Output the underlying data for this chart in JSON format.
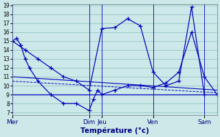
{
  "background_color": "#cce8e8",
  "grid_color": "#88bbbb",
  "line_color": "#0000bb",
  "xlabel": "Température (°c)",
  "ylim": [
    7,
    19
  ],
  "yticks": [
    7,
    8,
    9,
    10,
    11,
    12,
    13,
    14,
    15,
    16,
    17,
    18,
    19
  ],
  "xlim": [
    0,
    48
  ],
  "day_labels": [
    "Mer",
    "Dim",
    "Jeu",
    "Ven",
    "Sam"
  ],
  "day_x": [
    0,
    18,
    21,
    33,
    45
  ],
  "vlines": [
    0,
    18,
    21,
    33,
    45
  ],
  "line1_x": [
    0,
    1,
    2,
    3,
    4,
    6,
    9,
    12,
    15,
    18,
    19,
    20,
    21,
    24,
    27,
    30,
    33,
    36,
    39,
    42,
    45,
    48
  ],
  "line1_y": [
    15,
    15.3,
    14.5,
    13,
    12,
    10.5,
    9,
    8,
    8,
    7.2,
    8.5,
    9.5,
    9,
    9.5,
    10,
    10,
    9.8,
    10.3,
    11.5,
    16,
    11,
    9
  ],
  "line2_x": [
    0,
    3,
    6,
    9,
    12,
    15,
    18,
    21,
    24,
    27,
    30,
    33,
    36,
    39,
    42,
    45
  ],
  "line2_y": [
    15,
    14,
    13,
    12,
    11,
    10.5,
    9.5,
    16.4,
    16.5,
    17.5,
    16.7,
    11.5,
    10,
    10.5,
    18.8,
    9
  ],
  "line3_x": [
    0,
    48
  ],
  "line3_y": [
    11,
    9.5
  ],
  "line4_x": [
    0,
    48
  ],
  "line4_y": [
    10.5,
    9.2
  ],
  "line5_x": [
    0,
    48
  ],
  "line5_y": [
    9,
    9
  ]
}
